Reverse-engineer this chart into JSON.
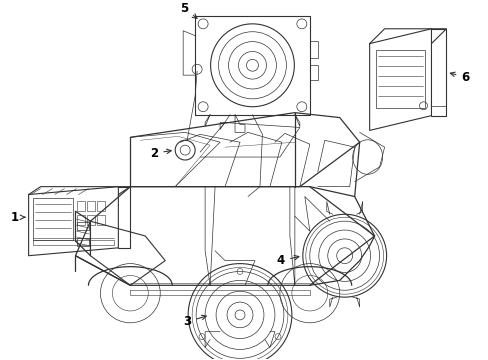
{
  "background_color": "#ffffff",
  "line_color": "#333333",
  "figsize": [
    4.89,
    3.6
  ],
  "dpi": 100,
  "lw_body": 0.9,
  "lw_parts": 0.8,
  "lw_thin": 0.5,
  "label_fontsize": 8.5
}
